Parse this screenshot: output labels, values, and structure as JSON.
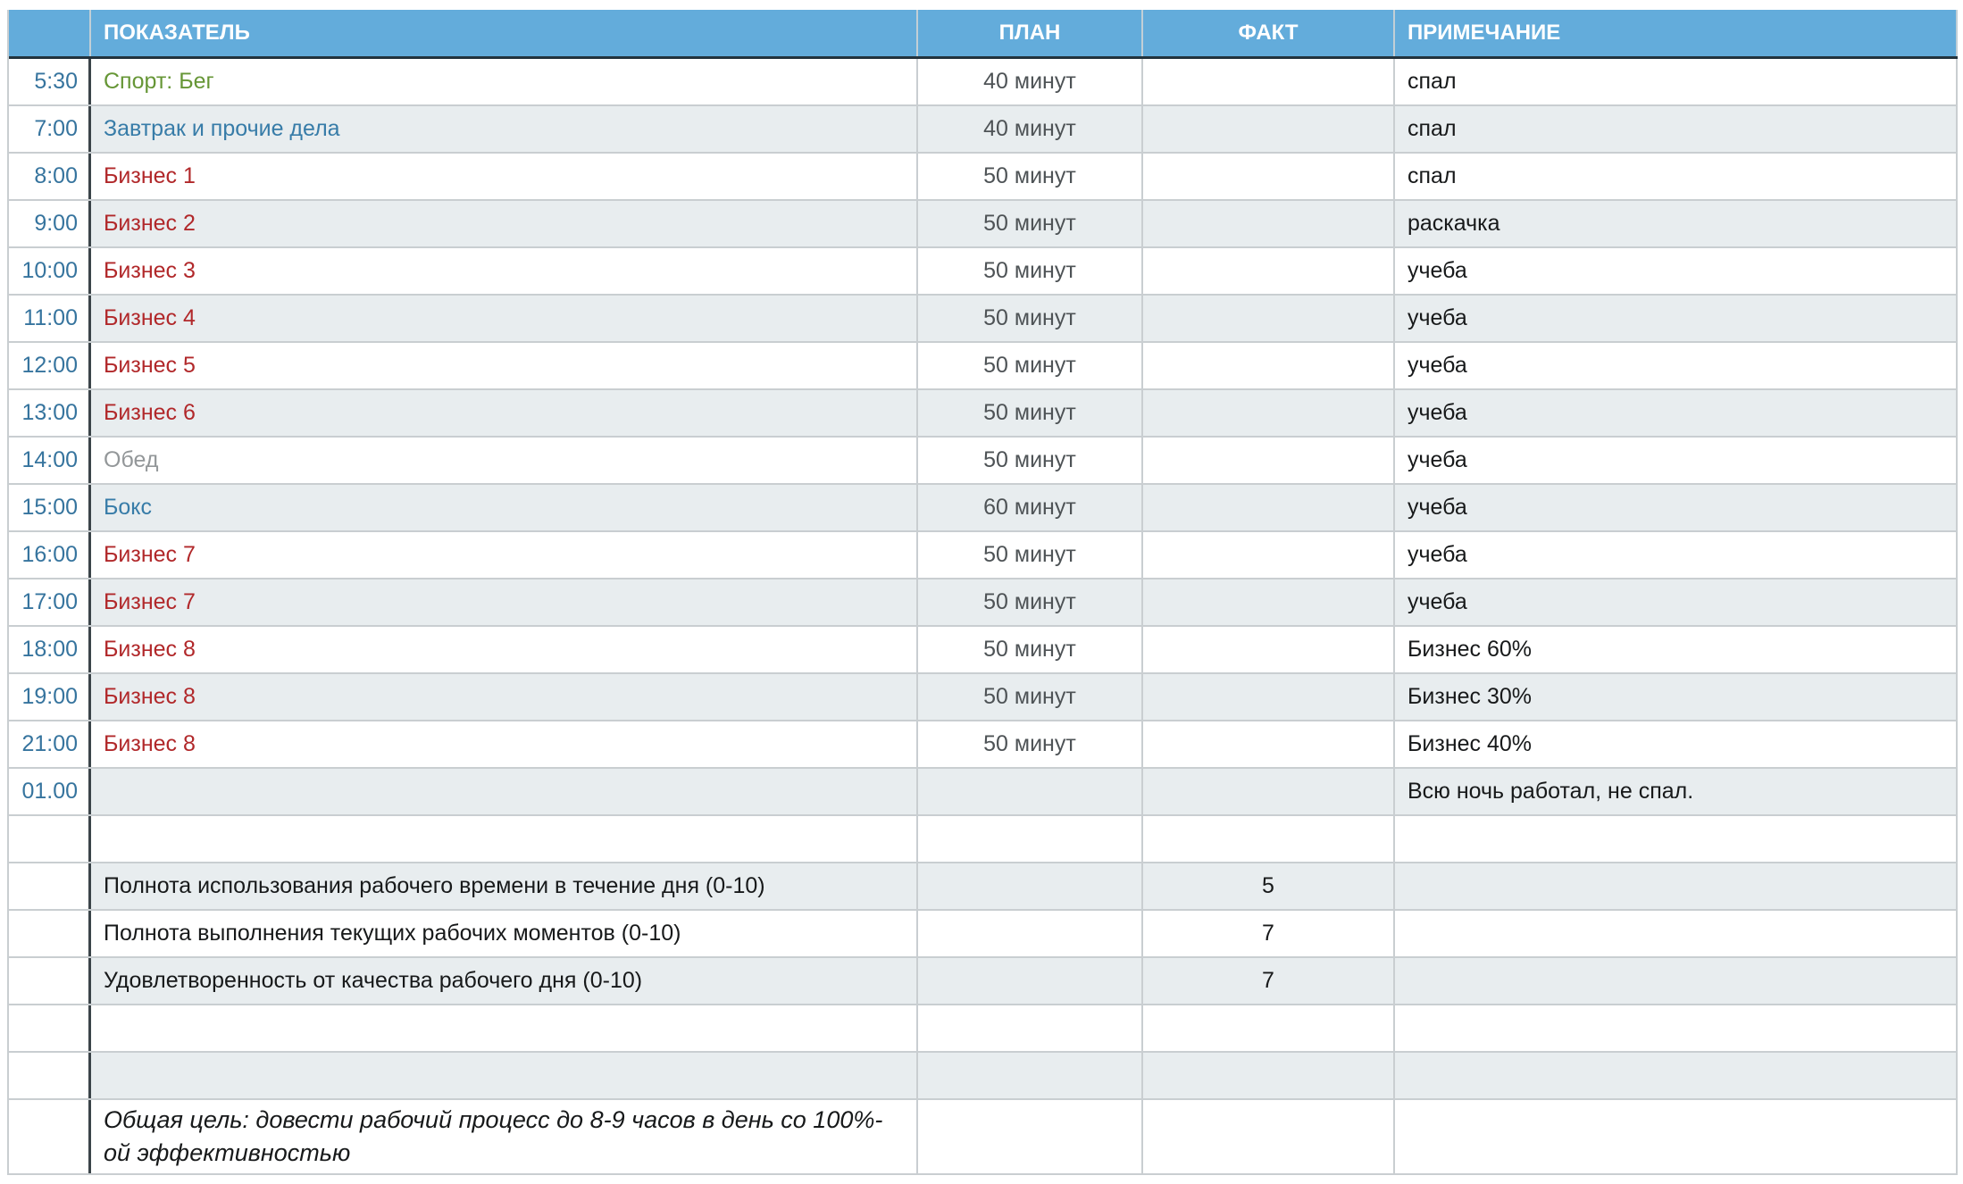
{
  "palette": {
    "header_bg": "#63acdb",
    "header_text": "#ffffff",
    "stripe_bg": "#e8edef",
    "grid_line": "#c9ced1",
    "header_underline": "#22333d",
    "time_divider": "#3b4449",
    "time_text": "#36749e",
    "plan_text": "#4e5356",
    "green": "#669636",
    "blue": "#377ca8",
    "red": "#b1282a",
    "gray": "#939799",
    "black": "#17191a"
  },
  "table": {
    "columns": {
      "time": "",
      "indicator": "ПОКАЗАТЕЛЬ",
      "plan": "ПЛАН",
      "fact": "ФАКТ",
      "note": "ПРИМЕЧАНИЕ"
    },
    "rows": [
      {
        "time": "5:30",
        "indicator": "Спорт: Бег",
        "plan": "40 минут",
        "fact": "",
        "note": "спал",
        "color": "#669636"
      },
      {
        "time": "7:00",
        "indicator": "Завтрак и прочие дела",
        "plan": "40 минут",
        "fact": "",
        "note": "спал",
        "color": "#377ca8"
      },
      {
        "time": "8:00",
        "indicator": "Бизнес 1",
        "plan": "50 минут",
        "fact": "",
        "note": "спал",
        "color": "#b1282a"
      },
      {
        "time": "9:00",
        "indicator": "Бизнес 2",
        "plan": "50 минут",
        "fact": "",
        "note": "раскачка",
        "color": "#b1282a"
      },
      {
        "time": "10:00",
        "indicator": "Бизнес 3",
        "plan": "50 минут",
        "fact": "",
        "note": "учеба",
        "color": "#b1282a"
      },
      {
        "time": "11:00",
        "indicator": "Бизнес 4",
        "plan": "50 минут",
        "fact": "",
        "note": "учеба",
        "color": "#b1282a"
      },
      {
        "time": "12:00",
        "indicator": "Бизнес 5",
        "plan": "50 минут",
        "fact": "",
        "note": "учеба",
        "color": "#b1282a"
      },
      {
        "time": "13:00",
        "indicator": "Бизнес 6",
        "plan": "50 минут",
        "fact": "",
        "note": "учеба",
        "color": "#b1282a"
      },
      {
        "time": "14:00",
        "indicator": "Обед",
        "plan": "50 минут",
        "fact": "",
        "note": "учеба",
        "color": "#939799"
      },
      {
        "time": "15:00",
        "indicator": "Бокс",
        "plan": "60 минут",
        "fact": "",
        "note": "учеба",
        "color": "#377ca8"
      },
      {
        "time": "16:00",
        "indicator": "Бизнес 7",
        "plan": "50 минут",
        "fact": "",
        "note": "учеба",
        "color": "#b1282a"
      },
      {
        "time": "17:00",
        "indicator": "Бизнес 7",
        "plan": "50 минут",
        "fact": "",
        "note": "учеба",
        "color": "#b1282a"
      },
      {
        "time": "18:00",
        "indicator": "Бизнес 8",
        "plan": "50 минут",
        "fact": "",
        "note": "Бизнес 60%",
        "color": "#b1282a"
      },
      {
        "time": "19:00",
        "indicator": "Бизнес 8",
        "plan": "50 минут",
        "fact": "",
        "note": "Бизнес 30%",
        "color": "#b1282a"
      },
      {
        "time": "21:00",
        "indicator": "Бизнес 8",
        "plan": "50 минут",
        "fact": "",
        "note": "Бизнес 40%",
        "color": "#b1282a"
      },
      {
        "time": "01.00",
        "indicator": "",
        "plan": "",
        "fact": "",
        "note": "Всю ночь работал, не спал.",
        "color": "#17191a"
      },
      {
        "time": "",
        "indicator": "",
        "plan": "",
        "fact": "",
        "note": "",
        "color": "#17191a"
      },
      {
        "time": "",
        "indicator": "Полнота использования рабочего времени в течение дня (0-10)",
        "plan": "",
        "fact": "5",
        "note": "",
        "color": "#17191a"
      },
      {
        "time": "",
        "indicator": "Полнота выполнения текущих рабочих моментов (0-10)",
        "plan": "",
        "fact": "7",
        "note": "",
        "color": "#17191a"
      },
      {
        "time": "",
        "indicator": "Удовлетворенность от качества рабочего дня (0-10)",
        "plan": "",
        "fact": "7",
        "note": "",
        "color": "#17191a"
      },
      {
        "time": "",
        "indicator": "",
        "plan": "",
        "fact": "",
        "note": "",
        "color": "#17191a"
      },
      {
        "time": "",
        "indicator": "",
        "plan": "",
        "fact": "",
        "note": "",
        "color": "#17191a"
      },
      {
        "time": "",
        "indicator": "Общая цель: довести рабочий процесс до 8-9 часов в день со 100%-ой эффективностью",
        "plan": "",
        "fact": "",
        "note": "",
        "color": "#17191a"
      }
    ]
  }
}
